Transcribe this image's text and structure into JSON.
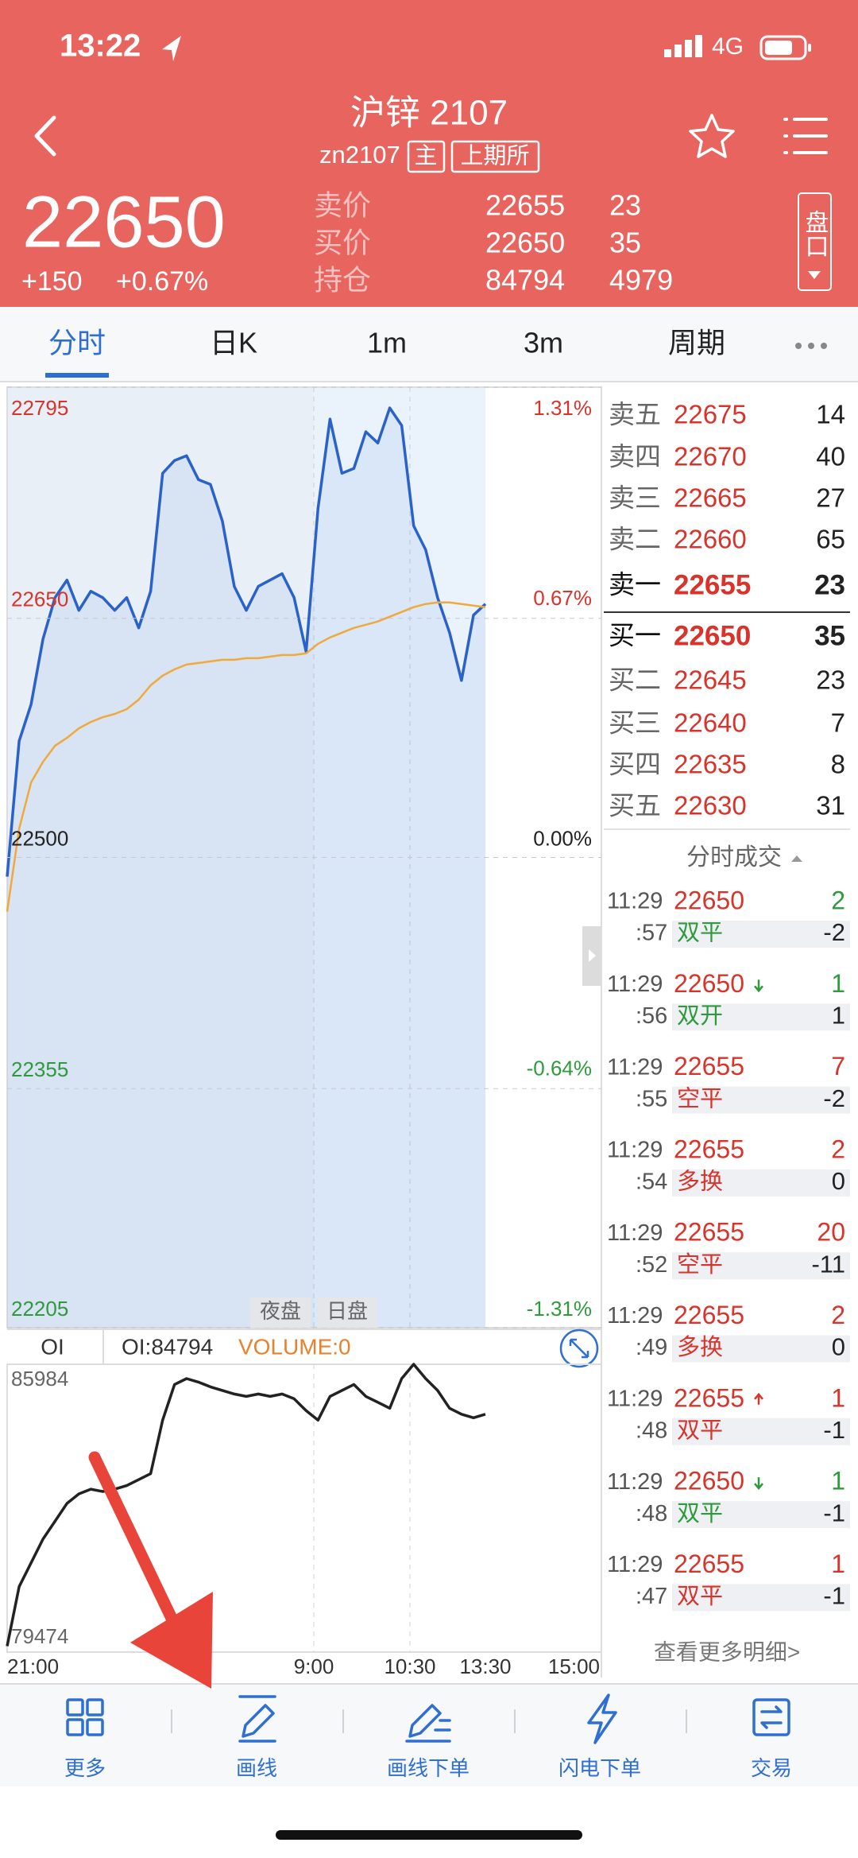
{
  "status": {
    "time": "13:22",
    "network": "4G"
  },
  "header": {
    "title": "沪锌 2107",
    "code": "zn2107",
    "tags": [
      "主",
      "上期所"
    ]
  },
  "quote": {
    "price": "22650",
    "change": "+150",
    "change_pct": "+0.67%",
    "rows": [
      {
        "label": "卖价",
        "price": "22655",
        "volume": "23"
      },
      {
        "label": "买价",
        "price": "22650",
        "volume": "35"
      },
      {
        "label": "持仓",
        "price": "84794",
        "volume": "4979"
      }
    ],
    "side_button": "盘口"
  },
  "tabs": [
    "分时",
    "日K",
    "1m",
    "3m",
    "周期"
  ],
  "chart_data": [
    {
      "type": "line",
      "series": [
        {
          "color": "#2a62c9",
          "values": [
            22488,
            22573,
            22596,
            22637,
            22663,
            22674,
            22655,
            22667,
            22663,
            22655,
            22663,
            22644,
            22667,
            22741,
            22749,
            22752,
            22737,
            22734,
            22711,
            22670,
            22655,
            22670,
            22674,
            22678,
            22663,
            22629,
            22719,
            22775,
            22741,
            22744,
            22767,
            22760,
            22782,
            22771,
            22708,
            22693,
            22663,
            22641,
            22611,
            22652,
            22659
          ]
        },
        {
          "color": "#f0a93b",
          "values": [
            22466,
            22518,
            22547,
            22560,
            22570,
            22575,
            22581,
            22585,
            22588,
            22590,
            22593,
            22599,
            22608,
            22614,
            22618,
            22621,
            22622,
            22623,
            22624,
            22624,
            22625,
            22625,
            22626,
            22627,
            22627,
            22628,
            22634,
            22638,
            22641,
            22644,
            22646,
            22648,
            22651,
            22654,
            22657,
            22659,
            22660,
            22660,
            22659,
            22658,
            22657
          ]
        }
      ],
      "ylim": [
        22205,
        22795
      ],
      "yticks": [
        22795,
        22650,
        22500,
        22355,
        22205
      ],
      "y2lim": [
        -1.31,
        1.31
      ],
      "y2ticks": [
        {
          "value": 1.31,
          "label": "1.31%"
        },
        {
          "value": 0.67,
          "label": "0.67%"
        },
        {
          "value": 0,
          "label": "0.00%"
        },
        {
          "value": -0.64,
          "label": "-0.64%"
        },
        {
          "value": -1.31,
          "label": "-1.31%"
        }
      ],
      "session_labels": [
        "夜盘",
        "日盘"
      ]
    },
    {
      "type": "line",
      "header": [
        "OI",
        "OI:84794",
        "VOLUME:0"
      ],
      "series": [
        {
          "color": "#222222",
          "values": [
            79608,
            80954,
            81492,
            82030,
            82433,
            82837,
            83052,
            83159,
            83106,
            83159,
            83240,
            83375,
            83509,
            84720,
            85527,
            85661,
            85581,
            85473,
            85393,
            85312,
            85258,
            85312,
            85258,
            85312,
            85204,
            84935,
            84720,
            85258,
            85393,
            85527,
            85258,
            85124,
            84989,
            85661,
            85984,
            85661,
            85393,
            84989,
            84854,
            84773,
            84854
          ]
        }
      ],
      "ylim": [
        79474,
        85984
      ],
      "yticks": [
        85984,
        79474
      ],
      "x_labels": [
        "21:00",
        "9:00",
        "10:30",
        "13:30",
        "15:00"
      ]
    }
  ],
  "order_book": {
    "asks": [
      {
        "label": "卖五",
        "price": "22675",
        "volume": "14"
      },
      {
        "label": "卖四",
        "price": "22670",
        "volume": "40"
      },
      {
        "label": "卖三",
        "price": "22665",
        "volume": "27"
      },
      {
        "label": "卖二",
        "price": "22660",
        "volume": "65"
      },
      {
        "label": "卖一",
        "price": "22655",
        "volume": "23"
      }
    ],
    "bids": [
      {
        "label": "买一",
        "price": "22650",
        "volume": "35"
      },
      {
        "label": "买二",
        "price": "22645",
        "volume": "23"
      },
      {
        "label": "买三",
        "price": "22640",
        "volume": "7"
      },
      {
        "label": "买四",
        "price": "22635",
        "volume": "8"
      },
      {
        "label": "买五",
        "price": "22630",
        "volume": "31"
      }
    ]
  },
  "trades": {
    "title": "分时成交",
    "rows": [
      {
        "time": "11:29",
        "second": ":57",
        "price": "22650",
        "volume": "2",
        "type": "双平",
        "change": "-2",
        "color": "#2e9a3c"
      },
      {
        "time": "11:29",
        "second": ":56",
        "price": "22650",
        "tick": "down",
        "volume": "1",
        "type": "双开",
        "change": "1",
        "color": "#2e9a3c"
      },
      {
        "time": "11:29",
        "second": ":55",
        "price": "22655",
        "volume": "7",
        "type": "空平",
        "change": "-2",
        "color": "#d9342b"
      },
      {
        "time": "11:29",
        "second": ":54",
        "price": "22655",
        "volume": "2",
        "type": "多换",
        "change": "0",
        "color": "#d9342b"
      },
      {
        "time": "11:29",
        "second": ":52",
        "price": "22655",
        "volume": "20",
        "type": "空平",
        "change": "-11",
        "color": "#d9342b"
      },
      {
        "time": "11:29",
        "second": ":49",
        "price": "22655",
        "volume": "2",
        "type": "多换",
        "change": "0",
        "color": "#d9342b"
      },
      {
        "time": "11:29",
        "second": ":48",
        "price": "22655",
        "tick": "up",
        "volume": "1",
        "type": "双平",
        "change": "-1",
        "color": "#d9342b"
      },
      {
        "time": "11:29",
        "second": ":48",
        "price": "22650",
        "tick": "down",
        "volume": "1",
        "type": "双平",
        "change": "-1",
        "color": "#2e9a3c"
      },
      {
        "time": "11:29",
        "second": ":47",
        "price": "22655",
        "volume": "1",
        "type": "双平",
        "change": "-1",
        "color": "#d9342b"
      }
    ],
    "more": "查看更多明细>"
  },
  "toolbar": [
    "更多",
    "画线",
    "画线下单",
    "闪电下单",
    "交易"
  ]
}
